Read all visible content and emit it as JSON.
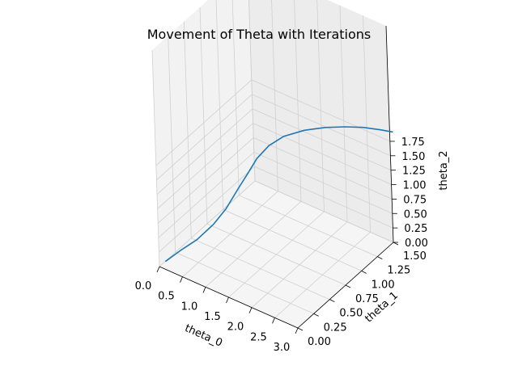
{
  "chart_data": {
    "type": "line",
    "title": "Movement of Theta with Iterations",
    "xlabel": "theta_0",
    "ylabel": "theta_1",
    "zlabel": "theta_2",
    "xlim": [
      0.0,
      3.0
    ],
    "ylim": [
      0.0,
      1.5
    ],
    "zlim": [
      0.0,
      1.875
    ],
    "xticks": [
      "0.0",
      "0.5",
      "1.0",
      "1.5",
      "2.0",
      "2.5",
      "3.0"
    ],
    "yticks": [
      "0.00",
      "0.25",
      "0.50",
      "0.75",
      "1.00",
      "1.25",
      "1.50"
    ],
    "zticks": [
      "0.00",
      "0.25",
      "0.50",
      "0.75",
      "1.00",
      "1.25",
      "1.50",
      "1.75"
    ],
    "grid": true,
    "series": [
      {
        "color": "#1f77b4",
        "x": [
          0.1,
          0.33,
          0.6,
          0.85,
          1.02,
          1.17,
          1.26,
          1.33,
          1.43,
          1.57,
          1.8,
          2.05,
          2.3,
          2.55,
          2.8,
          2.99
        ],
        "y": [
          0.03,
          0.09,
          0.17,
          0.26,
          0.34,
          0.43,
          0.53,
          0.62,
          0.74,
          0.87,
          1.03,
          1.18,
          1.3,
          1.41,
          1.49,
          1.55
        ],
        "z": [
          0.1,
          0.3,
          0.51,
          0.78,
          1.03,
          1.34,
          1.55,
          1.73,
          1.87,
          1.95,
          1.98,
          1.97,
          1.95,
          1.92,
          1.89,
          1.86
        ]
      }
    ]
  }
}
